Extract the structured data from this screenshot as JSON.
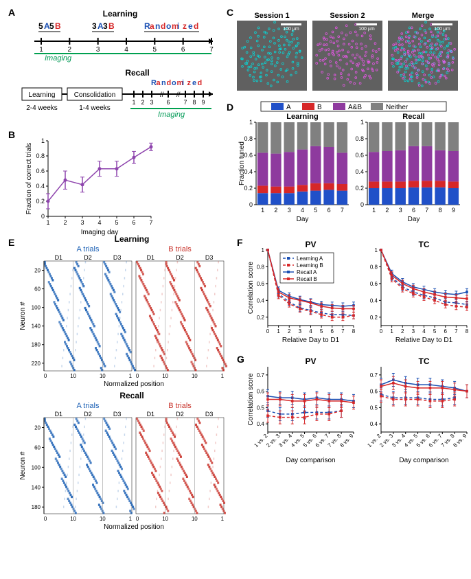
{
  "panelA": {
    "label": "A",
    "learning_title": "Learning",
    "recall_title": "Recall",
    "block_5A": "5",
    "block_A1": "A",
    "block_5B": "5",
    "block_B1": "B",
    "block_3A": "3",
    "block_A2": "A",
    "block_3B": "3",
    "block_B2": "B",
    "randomized": {
      "R": "R",
      "a1": "a",
      "n": "n",
      "d": "d",
      "o": "o",
      "m": "m",
      "i": "i",
      "z": "z",
      "e": "e",
      "d2": "d"
    },
    "days_learning": [
      "1",
      "2",
      "3",
      "4",
      "5",
      "6",
      "7"
    ],
    "imaging": "Imaging",
    "learning_box": "Learning",
    "learning_range": "2-4 weeks",
    "consolidation_box": "Consolidation",
    "consolidation_range": "1-4 weeks",
    "recall_days": [
      "1",
      "2",
      "3",
      "6",
      "7",
      "8",
      "9"
    ],
    "colors": {
      "A": "#1a4fb3",
      "B": "#d62728",
      "randomized_alt": [
        "#1a4fb3",
        "#d62728"
      ],
      "imaging": "#009955",
      "imaging_line": "#00a050"
    }
  },
  "panelB": {
    "label": "B",
    "xlabel": "Imaging day",
    "ylabel": "Fraction of correct trials",
    "x": [
      1,
      2,
      3,
      4,
      5,
      6,
      7
    ],
    "y": [
      0.2,
      0.48,
      0.42,
      0.63,
      0.63,
      0.78,
      0.92
    ],
    "err": [
      0.1,
      0.12,
      0.1,
      0.1,
      0.1,
      0.08,
      0.05
    ],
    "ylim": [
      0,
      1
    ],
    "yticks": [
      0,
      0.2,
      0.4,
      0.6,
      0.8,
      1
    ],
    "color": "#8e44ad"
  },
  "panelC": {
    "label": "C",
    "titles": [
      "Session 1",
      "Session 2",
      "Merge"
    ],
    "scale": "100 µm",
    "colors": {
      "s1": "#00e0e0",
      "s2": "#ee55ee",
      "bg": "#606060"
    }
  },
  "panelD": {
    "label": "D",
    "legend": {
      "A": "A",
      "B": "B",
      "AB": "A&B",
      "N": "Neither",
      "colors": {
        "A": "#2050c8",
        "B": "#d62728",
        "AB": "#8e3a9e",
        "N": "#808080"
      }
    },
    "ylabel": "Fraction tuned",
    "yticks": [
      0,
      0.2,
      0.4,
      0.6,
      0.8,
      1
    ],
    "learning": {
      "title": "Learning",
      "xlabel": "Day",
      "days": [
        "1",
        "2",
        "3",
        "4",
        "5",
        "6",
        "7"
      ],
      "A": [
        0.14,
        0.14,
        0.14,
        0.16,
        0.17,
        0.18,
        0.17
      ],
      "B": [
        0.09,
        0.08,
        0.08,
        0.08,
        0.09,
        0.08,
        0.08
      ],
      "AB": [
        0.4,
        0.4,
        0.42,
        0.43,
        0.45,
        0.44,
        0.38
      ],
      "N": [
        0.37,
        0.38,
        0.36,
        0.33,
        0.29,
        0.3,
        0.37
      ]
    },
    "recall": {
      "title": "Recall",
      "xlabel": "Day",
      "days": [
        "1",
        "2",
        "3",
        "6",
        "7",
        "8",
        "9"
      ],
      "A": [
        0.2,
        0.2,
        0.2,
        0.21,
        0.21,
        0.21,
        0.2
      ],
      "B": [
        0.08,
        0.08,
        0.08,
        0.08,
        0.08,
        0.08,
        0.08
      ],
      "AB": [
        0.36,
        0.37,
        0.38,
        0.42,
        0.42,
        0.37,
        0.37
      ],
      "N": [
        0.36,
        0.35,
        0.34,
        0.29,
        0.29,
        0.34,
        0.35
      ]
    }
  },
  "panelE": {
    "label": "E",
    "learning_title": "Learning",
    "recall_title": "Recall",
    "A_title": "A trials",
    "B_title": "B trials",
    "dlabels": [
      "D1",
      "D2",
      "D3"
    ],
    "ylabel": "Neuron #",
    "xlabel": "Normalized position",
    "xticks": [
      "0",
      "1"
    ],
    "learning_yticks": [
      20,
      60,
      100,
      140,
      180,
      220
    ],
    "recall_yticks": [
      20,
      60,
      100,
      140,
      180
    ],
    "colors": {
      "A": "#1a5fb4",
      "B": "#c83028"
    }
  },
  "panelF": {
    "label": "F",
    "pv_title": "PV",
    "tc_title": "TC",
    "xlabel": "Relative Day to D1",
    "ylabel": "Correlation score",
    "x": [
      0,
      1,
      2,
      3,
      4,
      5,
      6,
      7,
      8
    ],
    "yticks": [
      0.2,
      0.4,
      0.6,
      0.8,
      1
    ],
    "ylim": [
      0.1,
      1
    ],
    "legend": {
      "LA": "Learning A",
      "LB": "Learning B",
      "RA": "Recall A",
      "RB": "Recall B"
    },
    "colors": {
      "A": "#1a4fb3",
      "B": "#d62728"
    },
    "pv": {
      "LA": [
        1,
        0.48,
        0.38,
        0.31,
        0.28,
        0.25,
        0.23,
        0.23,
        0.22
      ],
      "LB": [
        1,
        0.46,
        0.36,
        0.3,
        0.27,
        0.23,
        0.2,
        0.2,
        0.22
      ],
      "RA": [
        1,
        0.52,
        0.45,
        0.41,
        0.38,
        0.35,
        0.34,
        0.33,
        0.34
      ],
      "RB": [
        1,
        0.5,
        0.43,
        0.4,
        0.37,
        0.33,
        0.31,
        0.3,
        0.3
      ]
    },
    "tc": {
      "LA": [
        1,
        0.68,
        0.56,
        0.5,
        0.46,
        0.43,
        0.38,
        0.37,
        0.35
      ],
      "LB": [
        1,
        0.66,
        0.54,
        0.48,
        0.44,
        0.4,
        0.35,
        0.33,
        0.32
      ],
      "RA": [
        1,
        0.72,
        0.62,
        0.56,
        0.53,
        0.5,
        0.48,
        0.47,
        0.5
      ],
      "RB": [
        1,
        0.7,
        0.6,
        0.54,
        0.5,
        0.47,
        0.44,
        0.43,
        0.42
      ]
    },
    "err": 0.04
  },
  "panelG": {
    "label": "G",
    "pv_title": "PV",
    "tc_title": "TC",
    "xlabel": "Day comparison",
    "ylabel": "Correlation score",
    "xticklabels": [
      "1 vs. 2",
      "2 vs. 3",
      "3 vs. 4",
      "4 vs. 5",
      "5 vs. 6",
      "6 vs. 7",
      "7 vs. 8",
      "8 vs. 9"
    ],
    "yticks": [
      0.4,
      0.5,
      0.6,
      0.7
    ],
    "ylim": [
      0.35,
      0.75
    ],
    "pv": {
      "LA": [
        0.48,
        0.46,
        0.46,
        0.47,
        0.47,
        0.47,
        0.48,
        null
      ],
      "LB": [
        0.45,
        0.44,
        0.44,
        0.44,
        0.46,
        0.46,
        0.48,
        null
      ],
      "RA": [
        0.57,
        0.56,
        0.56,
        0.55,
        0.56,
        0.55,
        0.55,
        0.54
      ],
      "RB": [
        0.55,
        0.55,
        0.54,
        0.54,
        0.55,
        0.54,
        0.54,
        0.53
      ]
    },
    "tc": {
      "LA": [
        0.58,
        0.56,
        0.56,
        0.56,
        0.55,
        0.55,
        0.56,
        null
      ],
      "LB": [
        0.57,
        0.55,
        0.55,
        0.55,
        0.54,
        0.54,
        0.55,
        null
      ],
      "RA": [
        0.64,
        0.67,
        0.65,
        0.64,
        0.64,
        0.63,
        0.62,
        0.6
      ],
      "RB": [
        0.63,
        0.65,
        0.63,
        0.62,
        0.62,
        0.62,
        0.61,
        0.6
      ]
    },
    "err": 0.04,
    "colors": {
      "A": "#1a4fb3",
      "B": "#d62728"
    }
  }
}
